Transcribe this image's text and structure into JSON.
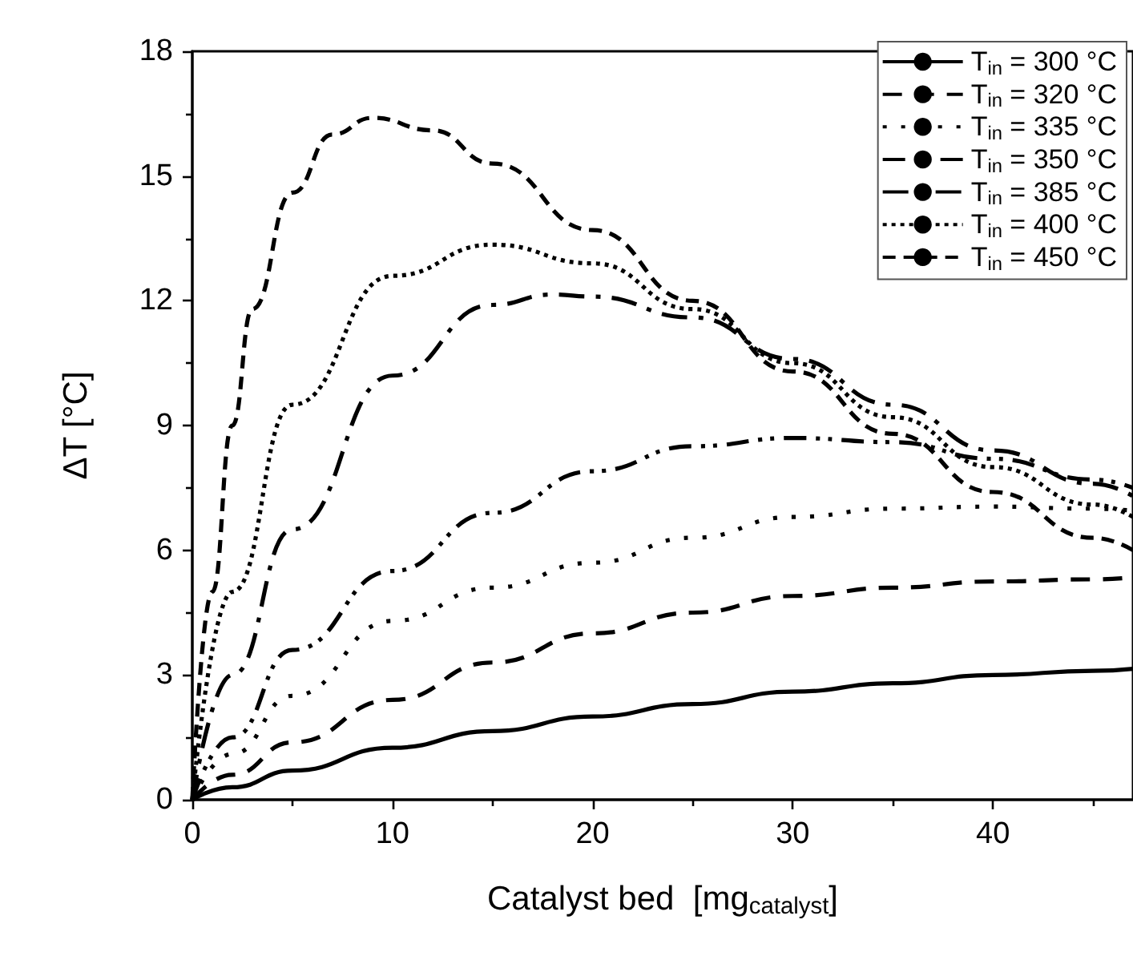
{
  "chart_data": {
    "type": "line",
    "xlabel": "Catalyst bed  [mg$_{catalyst}$]",
    "ylabel": "ΔT [°C]",
    "xlim": [
      0,
      47
    ],
    "xticks": [
      0,
      10,
      20,
      30,
      40
    ],
    "ylim": [
      0,
      18
    ],
    "yticks": [
      0,
      3,
      6,
      9,
      12,
      15,
      18
    ],
    "grid": false,
    "legend": "top right",
    "marker": "none",
    "series": [
      {
        "name": "T$_{in}$ = 300 °C",
        "color": "#000000",
        "line_style": "solid",
        "x": [
          0,
          2,
          5,
          10,
          15,
          20,
          25,
          30,
          35,
          40,
          45,
          47
        ],
        "values": [
          0,
          0.3,
          0.7,
          1.25,
          1.65,
          2.0,
          2.3,
          2.6,
          2.8,
          3.0,
          3.1,
          3.15
        ]
      },
      {
        "name": "T$_{in}$ = 320 °C",
        "color": "#000000",
        "line_style": "dashed",
        "x": [
          0,
          2,
          5,
          10,
          15,
          20,
          25,
          30,
          35,
          40,
          45,
          47
        ],
        "values": [
          0,
          0.6,
          1.38,
          2.4,
          3.3,
          4.0,
          4.5,
          4.9,
          5.1,
          5.25,
          5.3,
          5.35
        ]
      },
      {
        "name": "T$_{in}$ = 335 °C",
        "color": "#000000",
        "line_style": "dotted",
        "x": [
          0,
          2,
          5,
          10,
          15,
          20,
          25,
          30,
          35,
          40,
          45,
          47
        ],
        "values": [
          0,
          1.1,
          2.5,
          4.3,
          5.1,
          5.7,
          6.3,
          6.8,
          7.0,
          7.05,
          7.0,
          6.95
        ]
      },
      {
        "name": "T$_{in}$ = 350 °C",
        "color": "#000000",
        "line_style": "dashdotdot",
        "x": [
          0,
          2,
          5,
          10,
          15,
          20,
          25,
          30,
          35,
          40,
          45,
          47
        ],
        "values": [
          0,
          1.5,
          3.6,
          5.5,
          6.9,
          7.9,
          8.5,
          8.7,
          8.6,
          8.2,
          7.7,
          7.5
        ]
      },
      {
        "name": "T$_{in}$ = 385 °C",
        "color": "#000000",
        "line_style": "dashdot",
        "x": [
          0,
          2,
          5,
          10,
          15,
          18,
          20,
          25,
          30,
          35,
          40,
          45,
          47
        ],
        "values": [
          0,
          3,
          6.5,
          10.2,
          11.9,
          12.15,
          12.1,
          11.6,
          10.6,
          9.5,
          8.4,
          7.6,
          7.3
        ]
      },
      {
        "name": "T$_{in}$ = 400 °C",
        "color": "#000000",
        "line_style": "densedotted",
        "x": [
          0,
          2,
          5,
          10,
          15,
          20,
          25,
          30,
          35,
          40,
          45,
          47
        ],
        "values": [
          0,
          5,
          9.5,
          12.6,
          13.35,
          12.9,
          11.8,
          10.5,
          9.2,
          8.0,
          7.1,
          6.8
        ]
      },
      {
        "name": "T$_{in}$ = 450 °C",
        "color": "#000000",
        "line_style": "shortdashed",
        "x": [
          0,
          1,
          2,
          3,
          5,
          7,
          9,
          12,
          15,
          20,
          25,
          30,
          35,
          40,
          45,
          47
        ],
        "values": [
          0,
          5,
          9,
          11.8,
          14.6,
          16,
          16.4,
          16.1,
          15.3,
          13.7,
          12.0,
          10.3,
          8.8,
          7.4,
          6.3,
          6.0
        ]
      }
    ]
  }
}
